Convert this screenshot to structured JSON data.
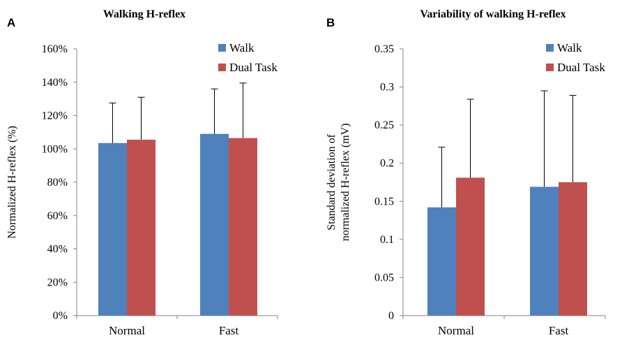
{
  "chart_data": [
    {
      "type": "bar",
      "panel": "A",
      "title": "Walking  H-reflex",
      "ylabel": "Normalized H-reflex (%)",
      "xlabel": "",
      "ylim": [
        0,
        1.6
      ],
      "yticks": [
        0,
        0.2,
        0.4,
        0.6,
        0.8,
        1.0,
        1.2,
        1.4,
        1.6
      ],
      "ytick_labels": [
        "0%",
        "20%",
        "40%",
        "60%",
        "80%",
        "100%",
        "120%",
        "140%",
        "160%"
      ],
      "categories": [
        "Normal",
        "Fast"
      ],
      "series": [
        {
          "name": "Walk",
          "color": "#4f81bd",
          "values": [
            1.035,
            1.09
          ],
          "error": [
            0.24,
            0.27
          ]
        },
        {
          "name": "Dual Task",
          "color": "#c0504d",
          "values": [
            1.055,
            1.065
          ],
          "error": [
            0.255,
            0.33
          ]
        }
      ],
      "legend": "top-right",
      "grid": false
    },
    {
      "type": "bar",
      "panel": "B",
      "title": "Variability  of walking  H-reflex",
      "ylabel": [
        "Standard deviation of",
        "normalized H-reflex (mV)"
      ],
      "xlabel": "",
      "ylim": [
        0,
        0.35
      ],
      "yticks": [
        0,
        0.05,
        0.1,
        0.15,
        0.2,
        0.25,
        0.3,
        0.35
      ],
      "ytick_labels": [
        "0",
        "0.05",
        "0.1",
        "0.15",
        "0.2",
        "0.25",
        "0.3",
        "0.35"
      ],
      "categories": [
        "Normal",
        "Fast"
      ],
      "series": [
        {
          "name": "Walk",
          "color": "#4f81bd",
          "values": [
            0.142,
            0.169
          ],
          "error": [
            0.079,
            0.126
          ]
        },
        {
          "name": "Dual Task",
          "color": "#c0504d",
          "values": [
            0.181,
            0.175
          ],
          "error": [
            0.103,
            0.114
          ]
        }
      ],
      "legend": "top-right",
      "grid": false
    }
  ]
}
